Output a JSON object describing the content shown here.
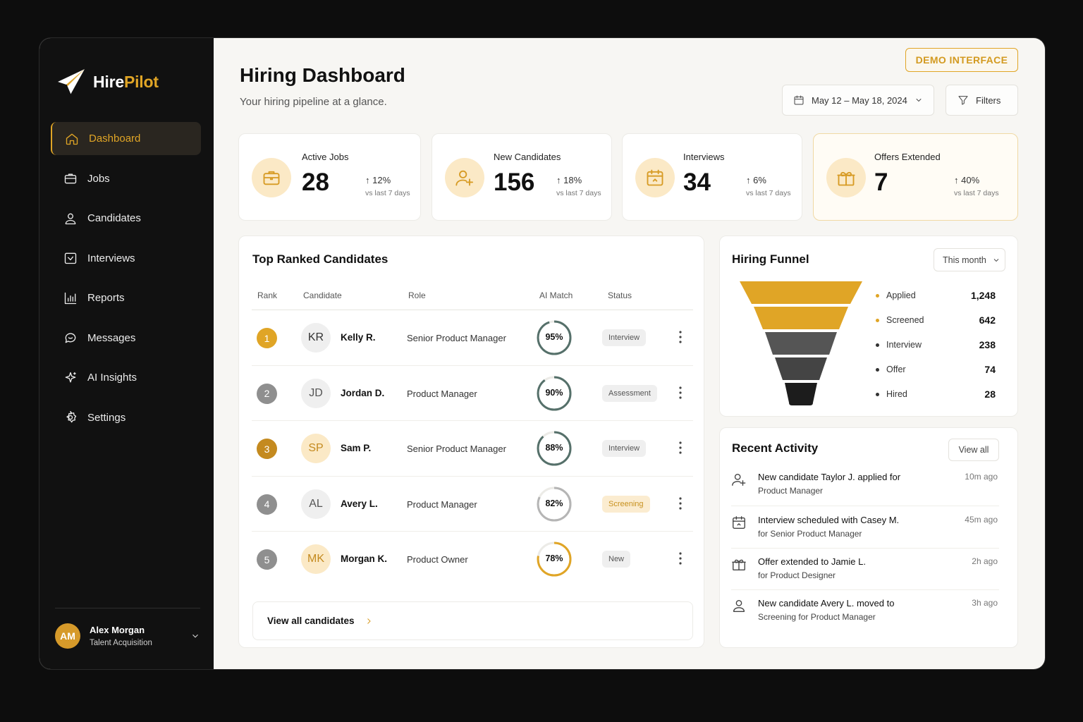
{
  "brand": {
    "name_part1": "Hire",
    "name_part2": "Pilot",
    "icon": "paper-plane-icon",
    "accent_color": "#e0a526"
  },
  "sidebar": {
    "items": [
      {
        "label": "Dashboard",
        "icon": "home-icon",
        "active": true
      },
      {
        "label": "Jobs",
        "icon": "briefcase-icon"
      },
      {
        "label": "Candidates",
        "icon": "user-icon"
      },
      {
        "label": "Interviews",
        "icon": "calendar-check-icon"
      },
      {
        "label": "Reports",
        "icon": "bar-chart-icon"
      },
      {
        "label": "Messages",
        "icon": "chat-bubble-icon"
      },
      {
        "label": "AI Insights",
        "icon": "sparkle-icon"
      },
      {
        "label": "Settings",
        "icon": "gear-icon"
      }
    ]
  },
  "user": {
    "initials": "AM",
    "name": "Alex Morgan",
    "role": "Talent Acquisition"
  },
  "header": {
    "title": "Hiring Dashboard",
    "subtitle": "Your hiring pipeline at a glance.",
    "demo_label": "DEMO INTERFACE",
    "date_range": "May 12 – May 18, 2024",
    "filters_label": "Filters"
  },
  "stats": [
    {
      "label": "Active Jobs",
      "value": "28",
      "delta": "12%",
      "vs": "vs last 7 days",
      "icon": "briefcase-icon"
    },
    {
      "label": "New Candidates",
      "value": "156",
      "delta": "18%",
      "vs": "vs last 7 days",
      "icon": "user-plus-icon"
    },
    {
      "label": "Interviews",
      "value": "34",
      "delta": "6%",
      "vs": "vs last 7 days",
      "icon": "calendar-icon"
    },
    {
      "label": "Offers Extended",
      "value": "7",
      "delta": "40%",
      "vs": "vs last 7 days",
      "icon": "gift-icon"
    }
  ],
  "candidates": {
    "title": "Top Ranked Candidates",
    "columns": [
      "Rank",
      "Candidate",
      "Role",
      "AI Match",
      "Status"
    ],
    "rows": [
      {
        "rank": "1",
        "initials": "KR",
        "name": "Kelly R.",
        "role": "Senior Product Manager",
        "match": "95%",
        "match_value": 95,
        "status": "Interview",
        "status_kind": "neutral",
        "rank_color": "#e0a526",
        "ring_color": "#55706a",
        "avatar_bg": "#efefef",
        "avatar_fg": "#333333"
      },
      {
        "rank": "2",
        "initials": "JD",
        "name": "Jordan D.",
        "role": "Product Manager",
        "match": "90%",
        "match_value": 90,
        "status": "Assessment",
        "status_kind": "neutral",
        "rank_color": "#8f8f8f",
        "ring_color": "#55706a",
        "avatar_bg": "#efefef",
        "avatar_fg": "#555555"
      },
      {
        "rank": "3",
        "initials": "SP",
        "name": "Sam P.",
        "role": "Senior Product Manager",
        "match": "88%",
        "match_value": 88,
        "status": "Interview",
        "status_kind": "neutral",
        "rank_color": "#c48a1f",
        "ring_color": "#55706a",
        "avatar_bg": "#fbe9c6",
        "avatar_fg": "#c48a1f"
      },
      {
        "rank": "4",
        "initials": "AL",
        "name": "Avery L.",
        "role": "Product Manager",
        "match": "82%",
        "match_value": 82,
        "status": "Screening",
        "status_kind": "screening",
        "rank_color": "#8f8f8f",
        "ring_color": "#b5b5b5",
        "avatar_bg": "#efefef",
        "avatar_fg": "#555555"
      },
      {
        "rank": "5",
        "initials": "MK",
        "name": "Morgan K.",
        "role": "Product Owner",
        "match": "78%",
        "match_value": 78,
        "status": "New",
        "status_kind": "neutral",
        "rank_color": "#8f8f8f",
        "ring_color": "#e0a526",
        "avatar_bg": "#fbe9c6",
        "avatar_fg": "#c48a1f"
      }
    ],
    "view_all": "View all candidates"
  },
  "funnel": {
    "title": "Hiring Funnel",
    "period": "This month",
    "stages": [
      {
        "label": "Applied",
        "value": "1,248",
        "color": "#e0a526"
      },
      {
        "label": "Screened",
        "value": "642",
        "color": "#e0a526"
      },
      {
        "label": "Interview",
        "value": "238",
        "color": "#555555"
      },
      {
        "label": "Offer",
        "value": "74",
        "color": "#444444"
      },
      {
        "label": "Hired",
        "value": "28",
        "color": "#1c1c1c"
      }
    ]
  },
  "activity": {
    "title": "Recent Activity",
    "view_all": "View all",
    "items": [
      {
        "icon": "user-plus-icon",
        "line1": "New candidate Taylor J. applied for",
        "line2": "Product Manager",
        "time": "10m ago"
      },
      {
        "icon": "calendar-icon",
        "line1": "Interview scheduled with Casey M.",
        "line2": "for Senior Product Manager",
        "time": "45m ago"
      },
      {
        "icon": "gift-icon",
        "line1": "Offer extended to Jamie L.",
        "line2": "for Product Designer",
        "time": "2h ago"
      },
      {
        "icon": "user-icon",
        "line1": "New candidate Avery L. moved to",
        "line2": "Screening for Product Manager",
        "time": "3h ago"
      }
    ]
  }
}
